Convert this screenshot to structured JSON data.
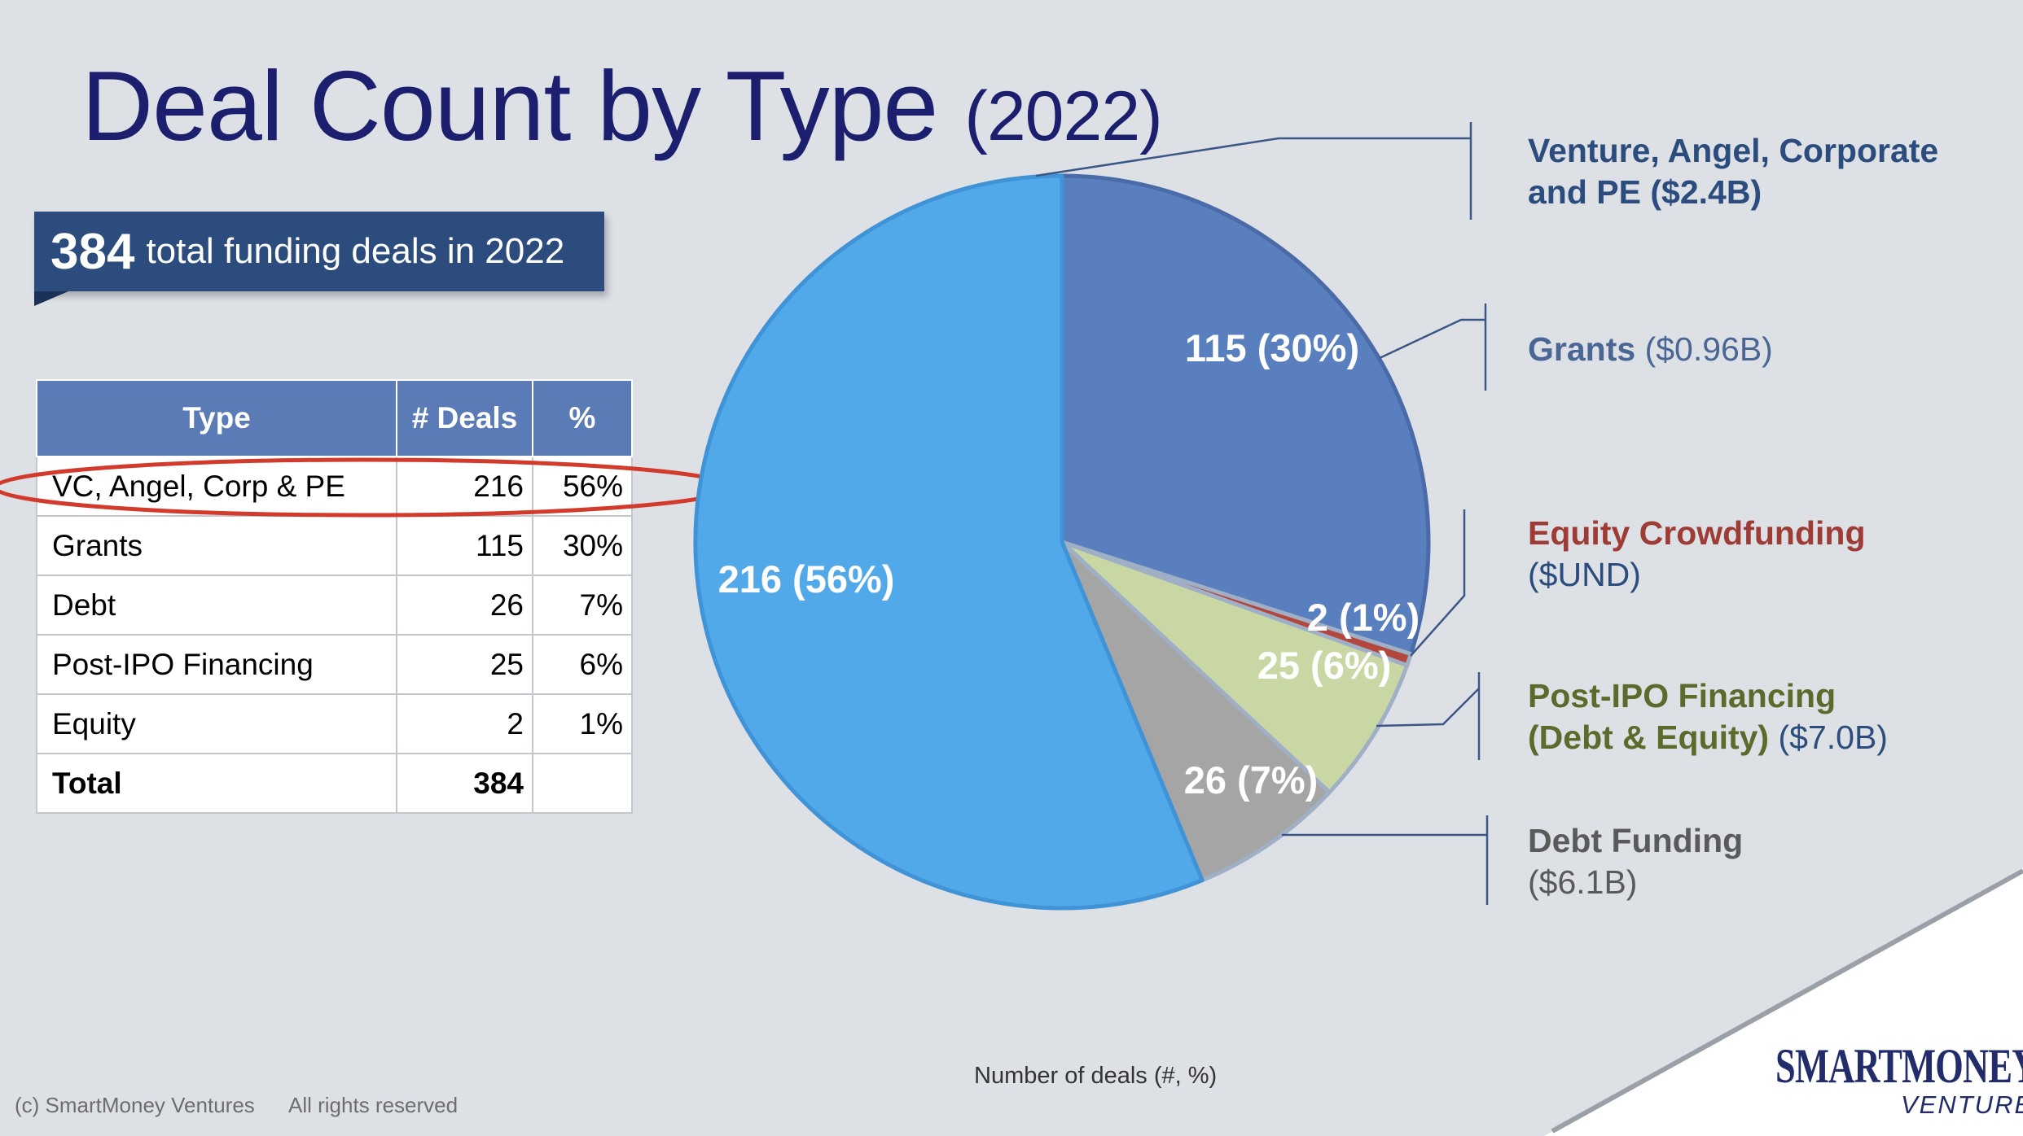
{
  "title": {
    "main": "Deal Count by Type",
    "year": "(2022)"
  },
  "banner": {
    "count": "384",
    "text": "total funding deals in 2022"
  },
  "table": {
    "headers": [
      "Type",
      "# Deals",
      "%"
    ],
    "rows": [
      [
        "VC, Angel, Corp & PE",
        "216",
        "56%"
      ],
      [
        "Grants",
        "115",
        "30%"
      ],
      [
        "Debt",
        "26",
        "7%"
      ],
      [
        "Post-IPO Financing",
        "25",
        "6%"
      ],
      [
        "Equity",
        "2",
        "1%"
      ]
    ],
    "total": [
      "Total",
      "384",
      ""
    ]
  },
  "chart_data": {
    "type": "pie",
    "title": "Deal Count by Type (2022)",
    "caption": "Number of deals (#, %)",
    "start_angle_deg": 0,
    "direction": "clockwise",
    "slices": [
      {
        "name": "Grants",
        "value": 115,
        "label": "115 (30%)",
        "color": "#5a7fbf"
      },
      {
        "name": "Equity Crowdfunding",
        "value": 2,
        "label": "2 (1%)",
        "color": "#b3463d"
      },
      {
        "name": "Post-IPO Financing",
        "value": 25,
        "label": "25 (6%)",
        "color": "#c8d7a3"
      },
      {
        "name": "Debt Funding",
        "value": 26,
        "label": "26 (7%)",
        "color": "#a5a5a5"
      },
      {
        "name": "Venture, Angel, Corporate and PE",
        "value": 216,
        "label": "216 (56%)",
        "color": "#52a9e9"
      }
    ]
  },
  "legend": [
    {
      "bold": "Venture, Angel, Corporate",
      "line2_bold": "and PE",
      "paren": "($2.4B)",
      "color": "#2c4c7d"
    },
    {
      "bold": "Grants",
      "paren": "($0.96B)",
      "color": "#4a6694"
    },
    {
      "bold": "Equity Crowdfunding",
      "paren": "($UND)",
      "color": "#9e3b35",
      "paren_color": "#2c4c7d"
    },
    {
      "bold": "Post-IPO Financing",
      "line2_bold": "(Debt & Equity)",
      "paren": "($7.0B)",
      "color": "#5b6b2c",
      "paren_color": "#2c4c7d"
    },
    {
      "bold": "Debt Funding",
      "paren": "($6.1B)",
      "color": "#5a5a5a"
    }
  ],
  "footer": {
    "copyright": "(c) SmartMoney Ventures",
    "rights": "All rights reserved"
  },
  "logo": {
    "main": "SMARTMONEY",
    "sub": "VENTURES"
  },
  "colors": {
    "title": "#1b1f6e",
    "banner": "#2c4c7d",
    "header": "#5b7bb6",
    "highlight": "#d23a2c"
  }
}
